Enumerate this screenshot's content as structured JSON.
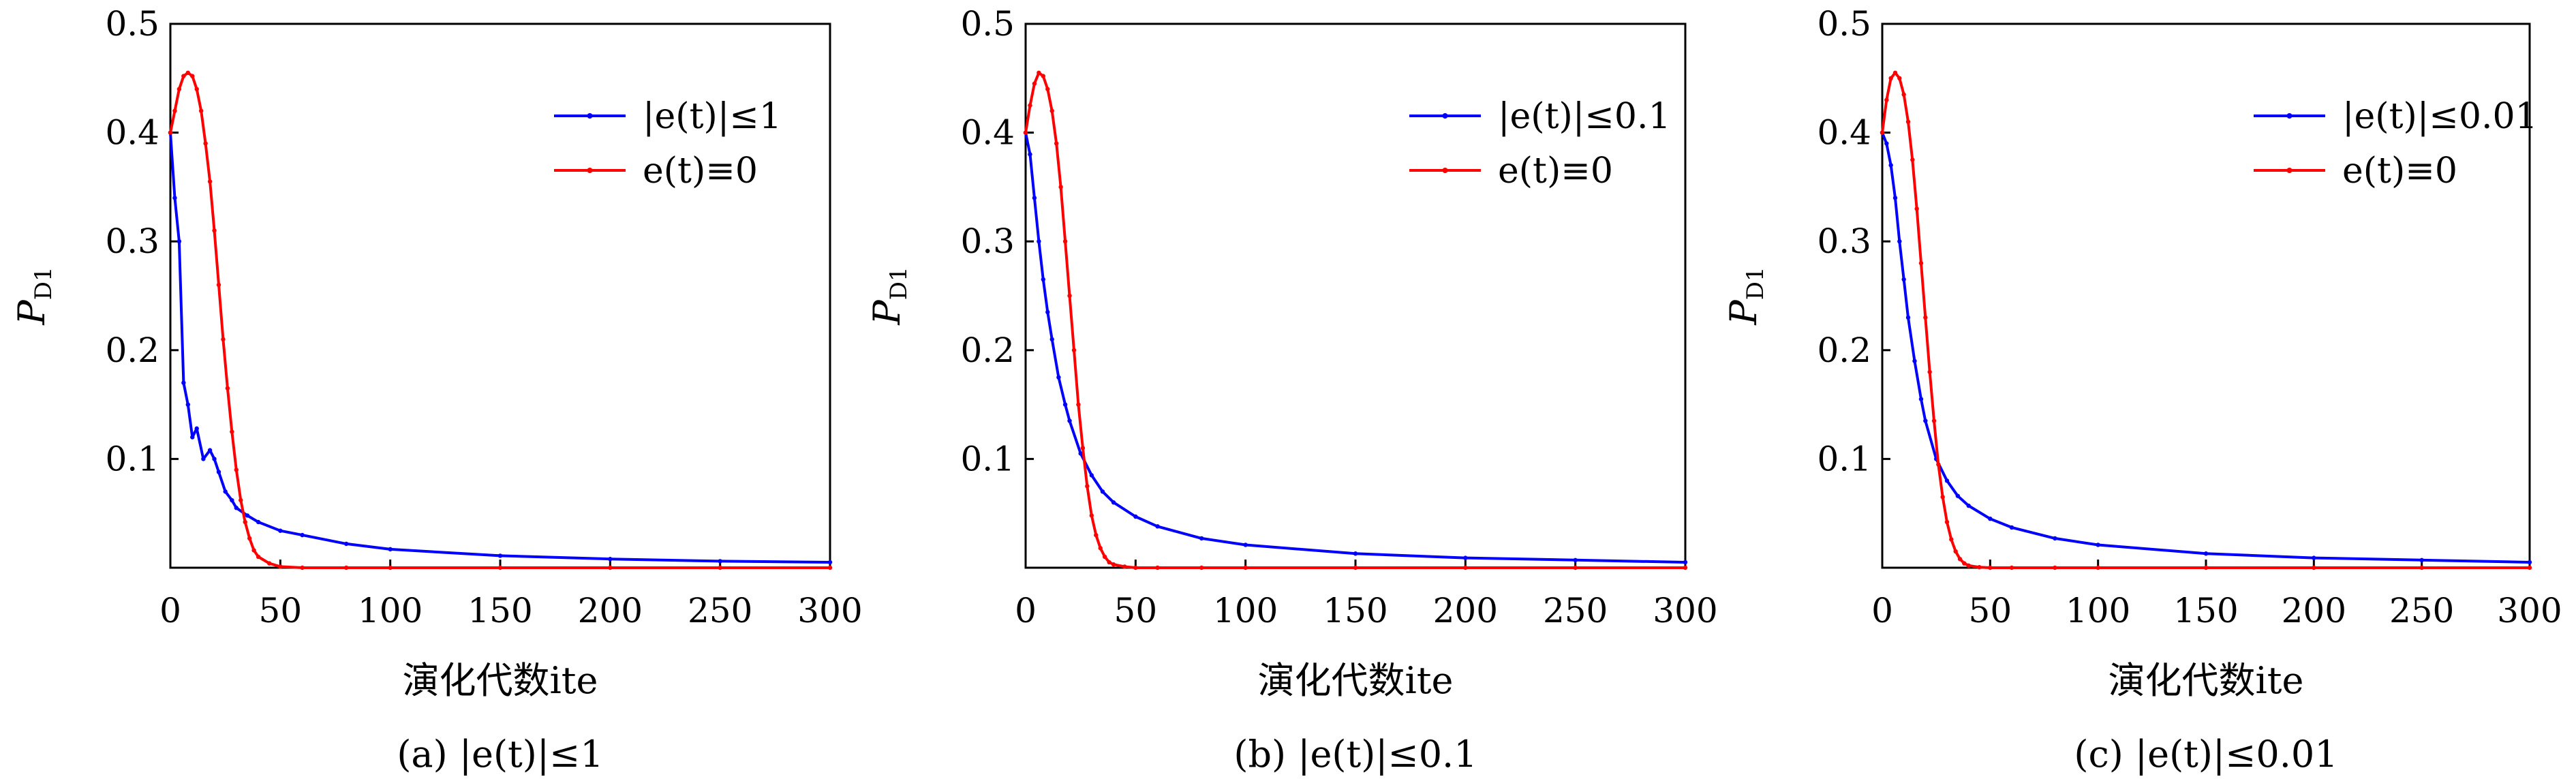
{
  "panels": [
    {
      "caption": "(a) |e(t)|≤1",
      "xlabel": "演化代数ite",
      "ylabel_main": "P",
      "ylabel_sub": "D1",
      "xticks": [
        "0",
        "50",
        "100",
        "150",
        "200",
        "250",
        "300"
      ],
      "yticks": [
        "0.1",
        "0.2",
        "0.3",
        "0.4",
        "0.5"
      ],
      "legend": [
        "|e(t)|≤1",
        "e(t)≡0"
      ]
    },
    {
      "caption": "(b) |e(t)|≤0.1",
      "xlabel": "演化代数ite",
      "ylabel_main": "P",
      "ylabel_sub": "D1",
      "xticks": [
        "0",
        "50",
        "100",
        "150",
        "200",
        "250",
        "300"
      ],
      "yticks": [
        "0.1",
        "0.2",
        "0.3",
        "0.4",
        "0.5"
      ],
      "legend": [
        "|e(t)|≤0.1",
        "e(t)≡0"
      ]
    },
    {
      "caption": "(c) |e(t)|≤0.01",
      "xlabel": "演化代数ite",
      "ylabel_main": "P",
      "ylabel_sub": "D1",
      "xticks": [
        "0",
        "50",
        "100",
        "150",
        "200",
        "250",
        "300"
      ],
      "yticks": [
        "0.1",
        "0.2",
        "0.3",
        "0.4",
        "0.5"
      ],
      "legend": [
        "|e(t)|≤0.01",
        "e(t)≡0"
      ]
    }
  ],
  "colors": {
    "blue": "#0000ff",
    "red": "#ff0000",
    "axis": "#000000"
  },
  "chart_data": [
    {
      "type": "line",
      "xlabel": "演化代数ite",
      "ylabel": "P_D1",
      "xlim": [
        0,
        300
      ],
      "ylim": [
        0,
        0.5
      ],
      "legend_position": "top-right",
      "series": [
        {
          "name": "|e(t)|≤1",
          "color": "#0000ff",
          "x": [
            0,
            2,
            4,
            6,
            8,
            10,
            12,
            15,
            18,
            20,
            22,
            25,
            28,
            30,
            35,
            40,
            50,
            60,
            80,
            100,
            150,
            200,
            250,
            300
          ],
          "y": [
            0.4,
            0.34,
            0.3,
            0.17,
            0.15,
            0.12,
            0.128,
            0.1,
            0.108,
            0.1,
            0.088,
            0.07,
            0.062,
            0.055,
            0.048,
            0.042,
            0.034,
            0.03,
            0.022,
            0.017,
            0.011,
            0.008,
            0.006,
            0.005
          ]
        },
        {
          "name": "e(t)≡0",
          "color": "#ff0000",
          "x": [
            0,
            2,
            4,
            6,
            8,
            10,
            12,
            14,
            16,
            18,
            20,
            22,
            24,
            26,
            28,
            30,
            32,
            34,
            36,
            38,
            40,
            45,
            50,
            60,
            80,
            100,
            150,
            200,
            250,
            300
          ],
          "y": [
            0.4,
            0.42,
            0.44,
            0.452,
            0.455,
            0.452,
            0.44,
            0.42,
            0.39,
            0.355,
            0.31,
            0.26,
            0.21,
            0.165,
            0.125,
            0.09,
            0.062,
            0.042,
            0.027,
            0.016,
            0.01,
            0.004,
            0.001,
            0,
            0,
            0,
            0,
            0,
            0,
            0
          ]
        }
      ]
    },
    {
      "type": "line",
      "xlabel": "演化代数ite",
      "ylabel": "P_D1",
      "xlim": [
        0,
        300
      ],
      "ylim": [
        0,
        0.5
      ],
      "legend_position": "top-right",
      "series": [
        {
          "name": "|e(t)|≤0.1",
          "color": "#0000ff",
          "x": [
            0,
            2,
            4,
            6,
            8,
            10,
            12,
            15,
            18,
            20,
            25,
            30,
            35,
            40,
            50,
            60,
            80,
            100,
            150,
            200,
            250,
            300
          ],
          "y": [
            0.4,
            0.38,
            0.34,
            0.3,
            0.265,
            0.235,
            0.21,
            0.175,
            0.15,
            0.135,
            0.105,
            0.085,
            0.07,
            0.06,
            0.047,
            0.038,
            0.027,
            0.021,
            0.013,
            0.009,
            0.007,
            0.005
          ]
        },
        {
          "name": "e(t)≡0",
          "color": "#ff0000",
          "x": [
            0,
            2,
            4,
            6,
            8,
            10,
            12,
            14,
            16,
            18,
            20,
            22,
            24,
            26,
            28,
            30,
            32,
            34,
            36,
            38,
            40,
            45,
            50,
            60,
            80,
            100,
            150,
            200,
            250,
            300
          ],
          "y": [
            0.4,
            0.425,
            0.445,
            0.455,
            0.452,
            0.44,
            0.42,
            0.39,
            0.35,
            0.3,
            0.25,
            0.2,
            0.15,
            0.11,
            0.075,
            0.048,
            0.03,
            0.018,
            0.01,
            0.005,
            0.003,
            0.001,
            0,
            0,
            0,
            0,
            0,
            0,
            0,
            0
          ]
        }
      ]
    },
    {
      "type": "line",
      "xlabel": "演化代数ite",
      "ylabel": "P_D1",
      "xlim": [
        0,
        300
      ],
      "ylim": [
        0,
        0.5
      ],
      "legend_position": "top-right",
      "series": [
        {
          "name": "|e(t)|≤0.01",
          "color": "#0000ff",
          "x": [
            0,
            2,
            4,
            6,
            8,
            10,
            12,
            15,
            18,
            20,
            25,
            30,
            35,
            40,
            50,
            60,
            80,
            100,
            150,
            200,
            250,
            300
          ],
          "y": [
            0.4,
            0.39,
            0.37,
            0.34,
            0.3,
            0.265,
            0.23,
            0.19,
            0.155,
            0.135,
            0.1,
            0.08,
            0.066,
            0.057,
            0.045,
            0.037,
            0.027,
            0.021,
            0.013,
            0.009,
            0.007,
            0.005
          ]
        },
        {
          "name": "e(t)≡0",
          "color": "#ff0000",
          "x": [
            0,
            2,
            4,
            6,
            8,
            10,
            12,
            14,
            16,
            18,
            20,
            22,
            24,
            26,
            28,
            30,
            32,
            34,
            36,
            38,
            40,
            45,
            50,
            60,
            80,
            100,
            150,
            200,
            250,
            300
          ],
          "y": [
            0.4,
            0.43,
            0.45,
            0.455,
            0.45,
            0.435,
            0.41,
            0.375,
            0.33,
            0.28,
            0.23,
            0.18,
            0.135,
            0.095,
            0.065,
            0.042,
            0.026,
            0.015,
            0.008,
            0.004,
            0.002,
            0.0005,
            0,
            0,
            0,
            0,
            0,
            0,
            0,
            0
          ]
        }
      ]
    }
  ]
}
